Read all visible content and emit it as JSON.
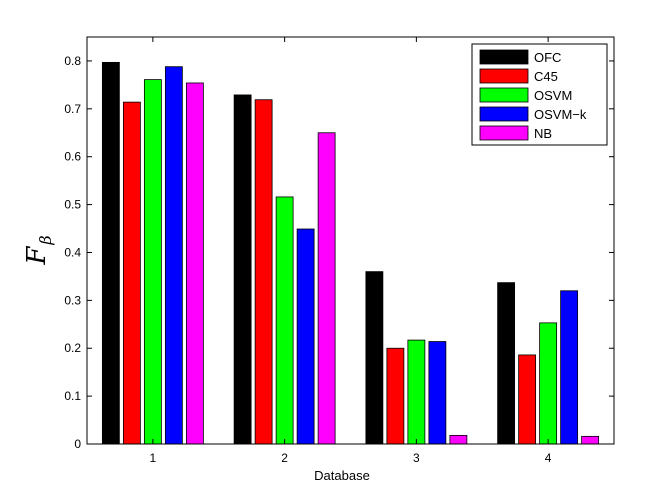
{
  "chart_data": {
    "type": "bar",
    "title": "",
    "xlabel": "Database",
    "ylabel": "F",
    "ylabel_subscript": "β",
    "categories": [
      "1",
      "2",
      "3",
      "4"
    ],
    "ylim": [
      0,
      0.85
    ],
    "yticks": [
      0,
      0.1,
      0.2,
      0.3,
      0.4,
      0.5,
      0.6,
      0.7,
      0.8
    ],
    "ytick_labels": [
      "0",
      "0.1",
      "0.2",
      "0.3",
      "0.4",
      "0.5",
      "0.6",
      "0.7",
      "0.8"
    ],
    "grid": false,
    "legend_position": "top-right",
    "series": [
      {
        "name": "OFC",
        "color": "#000000",
        "values": [
          0.797,
          0.729,
          0.36,
          0.337
        ]
      },
      {
        "name": "C45",
        "color": "#ff0000",
        "values": [
          0.714,
          0.719,
          0.2,
          0.186
        ]
      },
      {
        "name": "OSVM",
        "color": "#00ff00",
        "values": [
          0.761,
          0.516,
          0.217,
          0.253
        ]
      },
      {
        "name": "OSVM−k",
        "color": "#0000ff",
        "values": [
          0.788,
          0.449,
          0.214,
          0.32
        ]
      },
      {
        "name": "NB",
        "color": "#ff00ff",
        "values": [
          0.754,
          0.65,
          0.018,
          0.016
        ]
      }
    ]
  }
}
